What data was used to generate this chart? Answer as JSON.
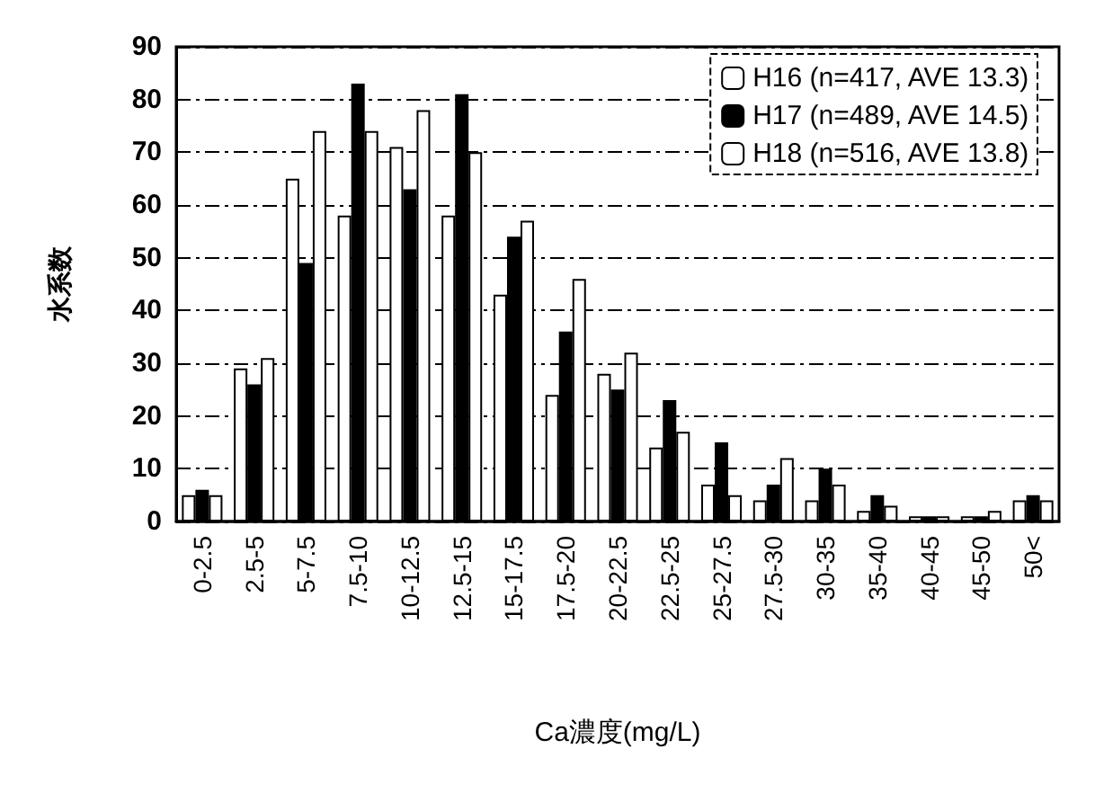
{
  "chart_data": {
    "type": "bar",
    "xlabel": "Ca濃度(mg/L)",
    "ylabel": "水系数",
    "categories": [
      "0-2.5",
      "2.5-5",
      "5-7.5",
      "7.5-10",
      "10-12.5",
      "12.5-15",
      "15-17.5",
      "17.5-20",
      "20-22.5",
      "22.5-25",
      "25-27.5",
      "27.5-30",
      "30-35",
      "35-40",
      "40-45",
      "45-50",
      "50<"
    ],
    "series": [
      {
        "name": "H16 (n=417, AVE 13.3)",
        "color": "#ffffff",
        "values": [
          5,
          29,
          65,
          58,
          71,
          58,
          43,
          24,
          28,
          14,
          7,
          4,
          4,
          2,
          1,
          1,
          4
        ]
      },
      {
        "name": "H17 (n=489, AVE 14.5)",
        "color": "#000000",
        "values": [
          6,
          26,
          49,
          83,
          63,
          81,
          54,
          36,
          25,
          23,
          15,
          7,
          10,
          5,
          1,
          1,
          5
        ]
      },
      {
        "name": "H18 (n=516, AVE 13.8)",
        "color": "#ffffff",
        "values": [
          5,
          31,
          74,
          74,
          78,
          70,
          57,
          46,
          32,
          17,
          5,
          12,
          7,
          3,
          1,
          2,
          4
        ]
      }
    ],
    "ylim": [
      0,
      90
    ],
    "yticks": [
      0,
      10,
      20,
      30,
      40,
      50,
      60,
      70,
      80,
      90
    ],
    "grid": "y",
    "legend": "top right"
  }
}
